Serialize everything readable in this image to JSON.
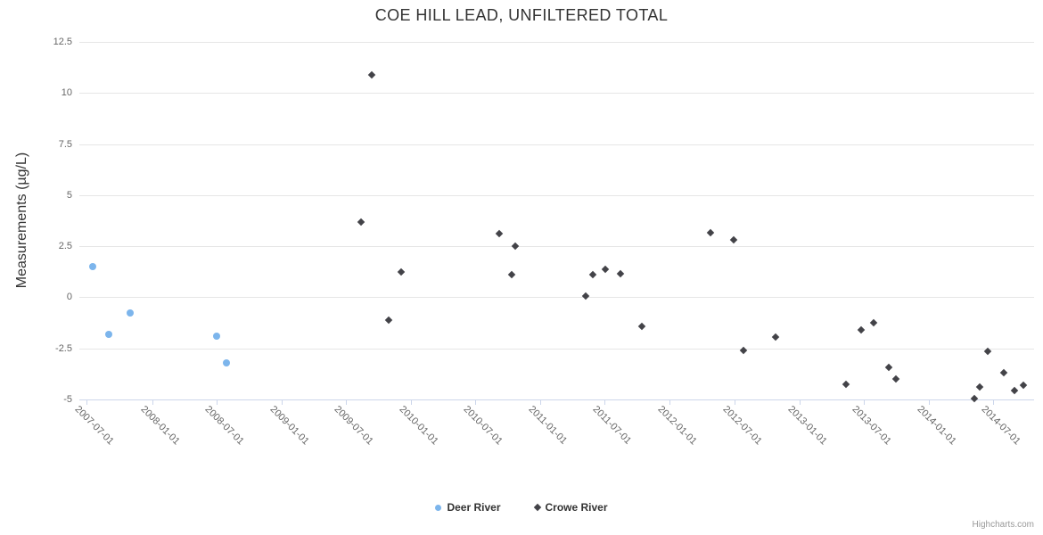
{
  "title": "COE HILL LEAD, UNFILTERED TOTAL",
  "credits_label": "Highcharts.com",
  "chart_data": {
    "type": "scatter",
    "title": "COE HILL LEAD, UNFILTERED TOTAL",
    "xlabel": "",
    "ylabel": "Measurements (µg/L)",
    "ylim": [
      -5,
      12.5
    ],
    "yticks": [
      "12.5",
      "10",
      "7.5",
      "5",
      "2.5",
      "0",
      "-2.5",
      "-5"
    ],
    "ytick_values": [
      12.5,
      10,
      7.5,
      5,
      2.5,
      0,
      -2.5,
      -5
    ],
    "xticks": [
      "2007-07-01",
      "2008-01-01",
      "2008-07-01",
      "2009-01-01",
      "2009-07-01",
      "2010-01-01",
      "2010-07-01",
      "2011-01-01",
      "2011-07-01",
      "2012-01-01",
      "2012-07-01",
      "2013-01-01",
      "2013-07-01",
      "2014-01-01",
      "2014-07-01"
    ],
    "grid": "horizontal",
    "legend_position": "bottom-center",
    "colors": {
      "grid": "#e6e6e6",
      "axis_line": "#ccd6eb",
      "tick_label": "#666666",
      "title_text": "#333333"
    },
    "series": [
      {
        "name": "Deer River",
        "marker": "circle",
        "color": "#7cb5ec",
        "points": [
          [
            "2007-07-18",
            1.5
          ],
          [
            "2007-08-31",
            -1.8
          ],
          [
            "2007-10-31",
            -0.75
          ],
          [
            "2008-07-01",
            -1.9
          ],
          [
            "2008-07-29",
            -3.2
          ]
        ]
      },
      {
        "name": "Crowe River",
        "marker": "diamond",
        "color": "#434348",
        "points": [
          [
            "2009-08-14",
            3.7
          ],
          [
            "2009-09-11",
            10.9
          ],
          [
            "2009-10-29",
            -1.1
          ],
          [
            "2009-12-03",
            1.25
          ],
          [
            "2010-09-06",
            3.1
          ],
          [
            "2010-10-11",
            1.1
          ],
          [
            "2010-10-23",
            2.5
          ],
          [
            "2011-05-08",
            0.05
          ],
          [
            "2011-05-28",
            1.1
          ],
          [
            "2011-07-02",
            1.35
          ],
          [
            "2011-08-14",
            1.15
          ],
          [
            "2011-10-13",
            -1.4
          ],
          [
            "2012-04-26",
            3.15
          ],
          [
            "2012-06-28",
            2.8
          ],
          [
            "2012-07-26",
            -2.6
          ],
          [
            "2012-10-25",
            -1.95
          ],
          [
            "2013-05-13",
            -4.25
          ],
          [
            "2013-06-25",
            -1.6
          ],
          [
            "2013-07-29",
            -1.25
          ],
          [
            "2013-09-09",
            -3.45
          ],
          [
            "2013-09-30",
            -4.0
          ],
          [
            "2014-05-09",
            -4.95
          ],
          [
            "2014-05-24",
            -4.4
          ],
          [
            "2014-06-15",
            -2.65
          ],
          [
            "2014-08-01",
            -3.7
          ],
          [
            "2014-08-30",
            -4.55
          ],
          [
            "2014-09-26",
            -4.3
          ]
        ]
      }
    ]
  }
}
